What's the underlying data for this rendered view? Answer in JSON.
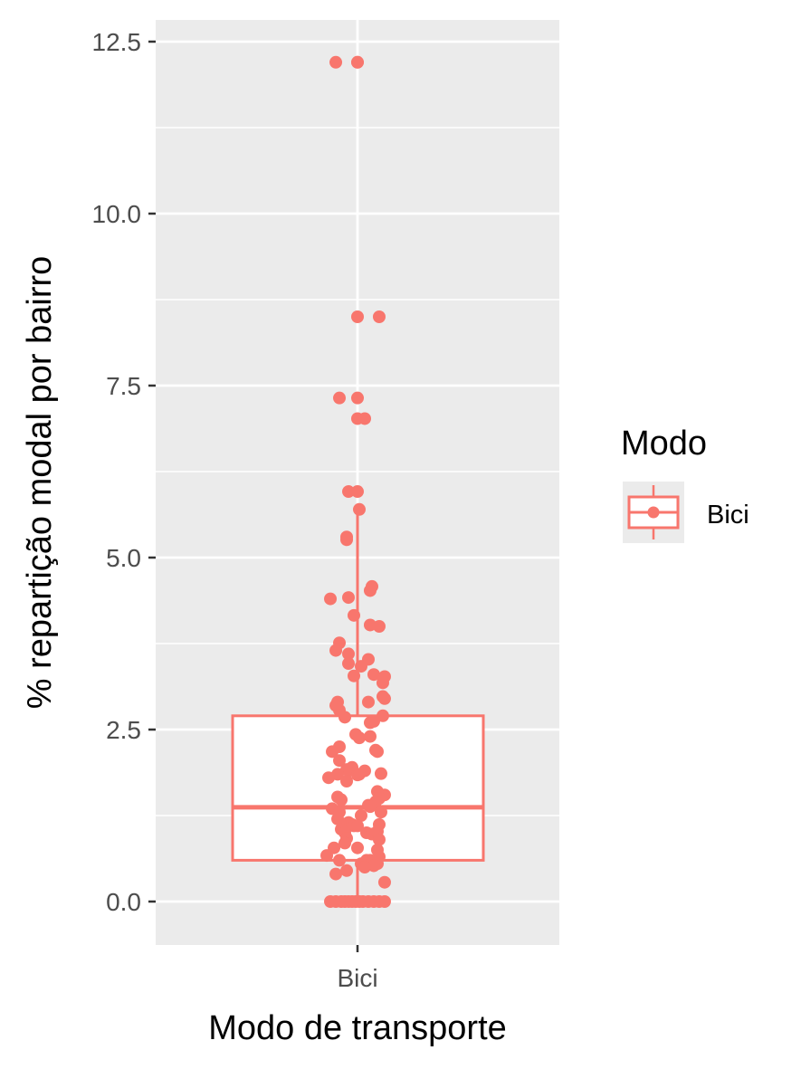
{
  "chart_data": {
    "type": "boxplot",
    "xlabel": "Modo de transporte",
    "ylabel": "% repartição modal por bairro",
    "categories": [
      "Bici"
    ],
    "yticks": [
      0.0,
      2.5,
      5.0,
      7.5,
      10.0,
      12.5
    ],
    "ytick_labels": [
      "0.0",
      "2.5",
      "5.0",
      "7.5",
      "10.0",
      "12.5"
    ],
    "ylim": [
      -0.6,
      12.85
    ],
    "grid": true,
    "legend": {
      "title": "Modo",
      "position": "right",
      "entries": [
        "Bici"
      ]
    },
    "color": "#F8766D",
    "box": {
      "category": "Bici",
      "q1": 0.6,
      "median": 1.37,
      "q3": 2.7,
      "whisker_low": 0.0,
      "whisker_high": 5.7
    },
    "points": [
      {
        "x": -0.12,
        "y": 12.2
      },
      {
        "x": 0.0,
        "y": 12.2
      },
      {
        "x": 0.0,
        "y": 12.2
      },
      {
        "x": 0.0,
        "y": 8.5
      },
      {
        "x": 0.12,
        "y": 8.5
      },
      {
        "x": -0.1,
        "y": 7.32
      },
      {
        "x": 0.0,
        "y": 7.32
      },
      {
        "x": 0.0,
        "y": 7.02
      },
      {
        "x": 0.04,
        "y": 7.02
      },
      {
        "x": -0.05,
        "y": 5.96
      },
      {
        "x": 0.0,
        "y": 5.96
      },
      {
        "x": 0.01,
        "y": 5.7
      },
      {
        "x": -0.06,
        "y": 5.3
      },
      {
        "x": -0.06,
        "y": 5.26
      },
      {
        "x": 0.08,
        "y": 4.58
      },
      {
        "x": 0.07,
        "y": 4.52
      },
      {
        "x": -0.15,
        "y": 4.4
      },
      {
        "x": -0.05,
        "y": 4.42
      },
      {
        "x": -0.02,
        "y": 4.16
      },
      {
        "x": 0.07,
        "y": 4.02
      },
      {
        "x": 0.12,
        "y": 4.0
      },
      {
        "x": -0.1,
        "y": 3.76
      },
      {
        "x": -0.12,
        "y": 3.65
      },
      {
        "x": -0.05,
        "y": 3.6
      },
      {
        "x": 0.06,
        "y": 3.52
      },
      {
        "x": -0.05,
        "y": 3.46
      },
      {
        "x": 0.02,
        "y": 3.42
      },
      {
        "x": 0.09,
        "y": 3.3
      },
      {
        "x": -0.02,
        "y": 3.28
      },
      {
        "x": 0.15,
        "y": 3.27
      },
      {
        "x": 0.14,
        "y": 3.18
      },
      {
        "x": 0.14,
        "y": 2.98
      },
      {
        "x": 0.15,
        "y": 2.95
      },
      {
        "x": -0.11,
        "y": 2.9
      },
      {
        "x": 0.06,
        "y": 2.9
      },
      {
        "x": -0.1,
        "y": 2.78
      },
      {
        "x": -0.12,
        "y": 2.85
      },
      {
        "x": -0.07,
        "y": 2.68
      },
      {
        "x": 0.14,
        "y": 2.7
      },
      {
        "x": 0.07,
        "y": 2.6
      },
      {
        "x": 0.09,
        "y": 2.62
      },
      {
        "x": -0.01,
        "y": 2.43
      },
      {
        "x": 0.01,
        "y": 2.38
      },
      {
        "x": 0.07,
        "y": 2.4
      },
      {
        "x": -0.1,
        "y": 2.25
      },
      {
        "x": -0.14,
        "y": 2.18
      },
      {
        "x": 0.1,
        "y": 2.2
      },
      {
        "x": 0.11,
        "y": 2.18
      },
      {
        "x": -0.1,
        "y": 2.05
      },
      {
        "x": -0.05,
        "y": 1.9
      },
      {
        "x": -0.03,
        "y": 1.95
      },
      {
        "x": -0.06,
        "y": 1.92
      },
      {
        "x": 0.04,
        "y": 1.9
      },
      {
        "x": -0.11,
        "y": 1.85
      },
      {
        "x": 0.0,
        "y": 1.84
      },
      {
        "x": 0.01,
        "y": 1.85
      },
      {
        "x": 0.13,
        "y": 1.86
      },
      {
        "x": -0.16,
        "y": 1.8
      },
      {
        "x": -0.06,
        "y": 1.75
      },
      {
        "x": 0.11,
        "y": 1.6
      },
      {
        "x": 0.15,
        "y": 1.55
      },
      {
        "x": -0.11,
        "y": 1.52
      },
      {
        "x": -0.09,
        "y": 1.48
      },
      {
        "x": 0.12,
        "y": 1.5
      },
      {
        "x": 0.1,
        "y": 1.45
      },
      {
        "x": 0.06,
        "y": 1.4
      },
      {
        "x": 0.07,
        "y": 1.38
      },
      {
        "x": -0.14,
        "y": 1.35
      },
      {
        "x": -0.1,
        "y": 1.3
      },
      {
        "x": 0.13,
        "y": 1.3
      },
      {
        "x": 0.02,
        "y": 1.25
      },
      {
        "x": -0.11,
        "y": 1.2
      },
      {
        "x": -0.05,
        "y": 1.15
      },
      {
        "x": -0.03,
        "y": 1.12
      },
      {
        "x": -0.02,
        "y": 1.1
      },
      {
        "x": 0.0,
        "y": 1.1
      },
      {
        "x": 0.12,
        "y": 1.12
      },
      {
        "x": -0.09,
        "y": 1.05
      },
      {
        "x": -0.07,
        "y": 1.0
      },
      {
        "x": 0.05,
        "y": 1.0
      },
      {
        "x": 0.08,
        "y": 0.98
      },
      {
        "x": 0.11,
        "y": 1.02
      },
      {
        "x": 0.12,
        "y": 0.9
      },
      {
        "x": -0.06,
        "y": 0.92
      },
      {
        "x": -0.07,
        "y": 0.85
      },
      {
        "x": 0.0,
        "y": 0.78
      },
      {
        "x": -0.13,
        "y": 0.78
      },
      {
        "x": 0.11,
        "y": 0.75
      },
      {
        "x": -0.17,
        "y": 0.67
      },
      {
        "x": 0.12,
        "y": 0.65
      },
      {
        "x": 0.05,
        "y": 0.6
      },
      {
        "x": 0.07,
        "y": 0.6
      },
      {
        "x": 0.08,
        "y": 0.58
      },
      {
        "x": -0.1,
        "y": 0.6
      },
      {
        "x": 0.02,
        "y": 0.55
      },
      {
        "x": 0.11,
        "y": 0.55
      },
      {
        "x": 0.09,
        "y": 0.52
      },
      {
        "x": 0.04,
        "y": 0.5
      },
      {
        "x": -0.06,
        "y": 0.45
      },
      {
        "x": -0.12,
        "y": 0.4
      },
      {
        "x": 0.15,
        "y": 0.28
      },
      {
        "x": -0.15,
        "y": 0.0
      },
      {
        "x": -0.12,
        "y": 0.0
      },
      {
        "x": -0.09,
        "y": 0.0
      },
      {
        "x": -0.07,
        "y": 0.0
      },
      {
        "x": -0.05,
        "y": 0.0
      },
      {
        "x": -0.03,
        "y": 0.0
      },
      {
        "x": -0.01,
        "y": 0.0
      },
      {
        "x": 0.01,
        "y": 0.0
      },
      {
        "x": 0.03,
        "y": 0.0
      },
      {
        "x": 0.06,
        "y": 0.0
      },
      {
        "x": 0.09,
        "y": 0.0
      },
      {
        "x": 0.12,
        "y": 0.0
      },
      {
        "x": 0.15,
        "y": 0.0
      }
    ]
  }
}
